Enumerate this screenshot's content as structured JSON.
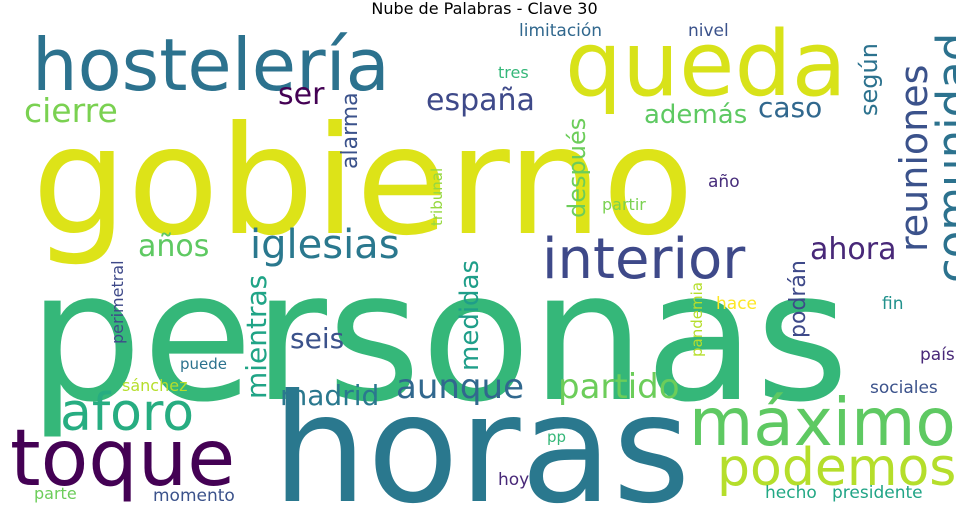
{
  "chart_data": {
    "type": "wordcloud",
    "title": "Nube de Palabras - Clave 30",
    "colormap": "viridis",
    "words": [
      {
        "text": "personas",
        "weight": 100,
        "color": "#35b779"
      },
      {
        "text": "gobierno",
        "weight": 92,
        "color": "#dde318"
      },
      {
        "text": "horas",
        "weight": 88,
        "color": "#2a788e"
      },
      {
        "text": "hostelería",
        "weight": 42,
        "color": "#2c728e"
      },
      {
        "text": "queda",
        "weight": 41,
        "color": "#d8e219"
      },
      {
        "text": "toque",
        "weight": 38,
        "color": "#440154"
      },
      {
        "text": "máximo",
        "weight": 34,
        "color": "#5ec962"
      },
      {
        "text": "podemos",
        "weight": 32,
        "color": "#b5de2b"
      },
      {
        "text": "aforo",
        "weight": 31,
        "color": "#27ad81"
      },
      {
        "text": "interior",
        "weight": 29,
        "color": "#3e4989"
      },
      {
        "text": "comunidad",
        "weight": 28,
        "color": "#2c728e"
      },
      {
        "text": "iglesias",
        "weight": 22,
        "color": "#2a788e"
      },
      {
        "text": "reuniones",
        "weight": 21,
        "color": "#3b528b"
      },
      {
        "text": "aunque",
        "weight": 20,
        "color": "#31688e"
      },
      {
        "text": "partido",
        "weight": 19,
        "color": "#6ccd5a"
      },
      {
        "text": "cierre",
        "weight": 18,
        "color": "#7ad151"
      },
      {
        "text": "españa",
        "weight": 18,
        "color": "#3e4989"
      },
      {
        "text": "años",
        "weight": 17,
        "color": "#5ec962"
      },
      {
        "text": "ahora",
        "weight": 17,
        "color": "#482878"
      },
      {
        "text": "madrid",
        "weight": 16,
        "color": "#2a788e"
      },
      {
        "text": "mientras",
        "weight": 16,
        "color": "#20a486"
      },
      {
        "text": "medidas",
        "weight": 15,
        "color": "#1f9e89"
      },
      {
        "text": "seis",
        "weight": 15,
        "color": "#3b528b"
      },
      {
        "text": "ser",
        "weight": 15,
        "color": "#440154"
      },
      {
        "text": "caso",
        "weight": 15,
        "color": "#31688e"
      },
      {
        "text": "además",
        "weight": 14,
        "color": "#5ec962"
      },
      {
        "text": "después",
        "weight": 14,
        "color": "#6ccd5a"
      },
      {
        "text": "según",
        "weight": 14,
        "color": "#2c728e"
      },
      {
        "text": "alarma",
        "weight": 13,
        "color": "#3b528b"
      },
      {
        "text": "podrán",
        "weight": 12,
        "color": "#3e4989"
      },
      {
        "text": "momento",
        "weight": 10,
        "color": "#3b528b"
      },
      {
        "text": "presidente",
        "weight": 10,
        "color": "#20a486"
      },
      {
        "text": "hecho",
        "weight": 10,
        "color": "#22a884"
      },
      {
        "text": "sociales",
        "weight": 10,
        "color": "#3b528b"
      },
      {
        "text": "país",
        "weight": 10,
        "color": "#482878"
      },
      {
        "text": "fin",
        "weight": 10,
        "color": "#21918c"
      },
      {
        "text": "hace",
        "weight": 10,
        "color": "#fde725"
      },
      {
        "text": "pandemia",
        "weight": 9,
        "color": "#b5de2b"
      },
      {
        "text": "puede",
        "weight": 9,
        "color": "#2c728e"
      },
      {
        "text": "perimetral",
        "weight": 9,
        "color": "#3e4989"
      },
      {
        "text": "sánchez",
        "weight": 9,
        "color": "#b5de2b"
      },
      {
        "text": "parte",
        "weight": 9,
        "color": "#6ccd5a"
      },
      {
        "text": "hoy",
        "weight": 9,
        "color": "#482878"
      },
      {
        "text": "pp",
        "weight": 9,
        "color": "#35b779"
      },
      {
        "text": "tribunal",
        "weight": 9,
        "color": "#95d840"
      },
      {
        "text": "partir",
        "weight": 9,
        "color": "#7ad151"
      },
      {
        "text": "año",
        "weight": 9,
        "color": "#472d7b"
      },
      {
        "text": "limitación",
        "weight": 9,
        "color": "#31688e"
      },
      {
        "text": "nivel",
        "weight": 9,
        "color": "#3b528b"
      },
      {
        "text": "tres",
        "weight": 9,
        "color": "#35b779"
      }
    ]
  }
}
